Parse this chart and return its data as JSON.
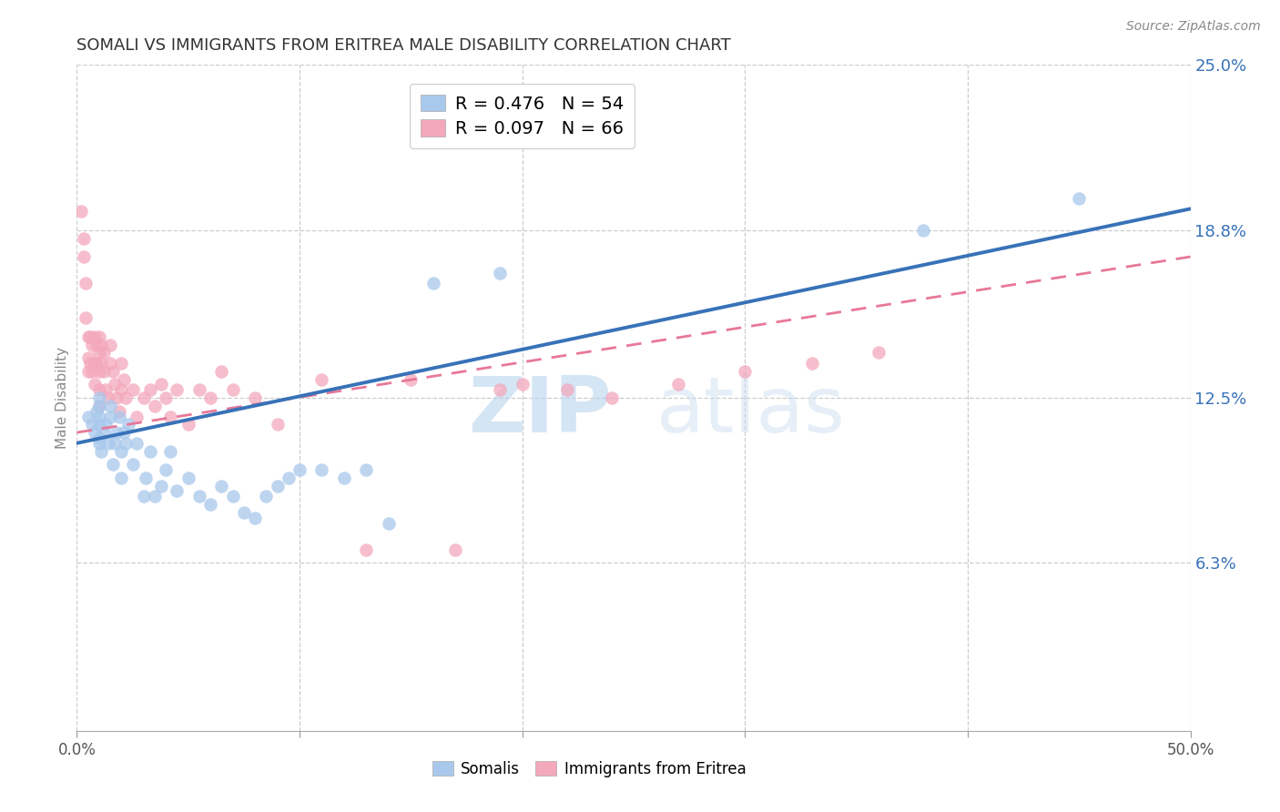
{
  "title": "SOMALI VS IMMIGRANTS FROM ERITREA MALE DISABILITY CORRELATION CHART",
  "source": "Source: ZipAtlas.com",
  "ylabel": "Male Disability",
  "xlim": [
    0.0,
    0.5
  ],
  "ylim": [
    0.0,
    0.25
  ],
  "xticks": [
    0.0,
    0.1,
    0.2,
    0.3,
    0.4,
    0.5
  ],
  "xticklabels": [
    "0.0%",
    "",
    "",
    "",
    "",
    "50.0%"
  ],
  "ytick_labels_right": [
    "6.3%",
    "12.5%",
    "18.8%",
    "25.0%"
  ],
  "ytick_vals_right": [
    0.063,
    0.125,
    0.188,
    0.25
  ],
  "somali_legend": "Somalis",
  "eritrea_legend": "Immigrants from Eritrea",
  "watermark_zip": "ZIP",
  "watermark_atlas": "atlas",
  "somali_color": "#A8C8EC",
  "eritrea_color": "#F4A8BC",
  "somali_line_color": "#3872B8",
  "eritrea_line_color": "#E87898",
  "somali_R": 0.476,
  "somali_N": 54,
  "eritrea_R": 0.097,
  "eritrea_N": 66,
  "somali_line_x0": 0.0,
  "somali_line_y0": 0.108,
  "somali_line_x1": 0.5,
  "somali_line_y1": 0.196,
  "eritrea_line_x0": 0.0,
  "eritrea_line_y0": 0.112,
  "eritrea_line_x1": 0.5,
  "eritrea_line_y1": 0.178,
  "somali_x": [
    0.005,
    0.007,
    0.008,
    0.009,
    0.01,
    0.01,
    0.01,
    0.01,
    0.01,
    0.01,
    0.011,
    0.012,
    0.013,
    0.014,
    0.015,
    0.015,
    0.016,
    0.017,
    0.018,
    0.019,
    0.02,
    0.02,
    0.021,
    0.022,
    0.023,
    0.025,
    0.027,
    0.03,
    0.031,
    0.033,
    0.035,
    0.038,
    0.04,
    0.042,
    0.045,
    0.05,
    0.055,
    0.06,
    0.065,
    0.07,
    0.075,
    0.08,
    0.085,
    0.09,
    0.095,
    0.1,
    0.11,
    0.12,
    0.13,
    0.14,
    0.16,
    0.19,
    0.38,
    0.45
  ],
  "somali_y": [
    0.118,
    0.115,
    0.112,
    0.12,
    0.108,
    0.11,
    0.115,
    0.118,
    0.122,
    0.125,
    0.105,
    0.112,
    0.115,
    0.108,
    0.118,
    0.122,
    0.1,
    0.108,
    0.112,
    0.118,
    0.095,
    0.105,
    0.112,
    0.108,
    0.115,
    0.1,
    0.108,
    0.088,
    0.095,
    0.105,
    0.088,
    0.092,
    0.098,
    0.105,
    0.09,
    0.095,
    0.088,
    0.085,
    0.092,
    0.088,
    0.082,
    0.08,
    0.088,
    0.092,
    0.095,
    0.098,
    0.098,
    0.095,
    0.098,
    0.078,
    0.168,
    0.172,
    0.188,
    0.2
  ],
  "eritrea_x": [
    0.002,
    0.003,
    0.003,
    0.004,
    0.004,
    0.005,
    0.005,
    0.005,
    0.006,
    0.006,
    0.007,
    0.007,
    0.008,
    0.008,
    0.008,
    0.009,
    0.009,
    0.01,
    0.01,
    0.01,
    0.01,
    0.01,
    0.011,
    0.011,
    0.012,
    0.012,
    0.013,
    0.014,
    0.015,
    0.015,
    0.016,
    0.017,
    0.018,
    0.019,
    0.02,
    0.02,
    0.021,
    0.022,
    0.025,
    0.027,
    0.03,
    0.033,
    0.035,
    0.038,
    0.04,
    0.042,
    0.045,
    0.05,
    0.055,
    0.06,
    0.065,
    0.07,
    0.08,
    0.09,
    0.11,
    0.13,
    0.15,
    0.17,
    0.19,
    0.2,
    0.22,
    0.24,
    0.27,
    0.3,
    0.33,
    0.36
  ],
  "eritrea_y": [
    0.195,
    0.185,
    0.178,
    0.168,
    0.155,
    0.148,
    0.14,
    0.135,
    0.148,
    0.138,
    0.145,
    0.135,
    0.148,
    0.138,
    0.13,
    0.145,
    0.138,
    0.148,
    0.142,
    0.135,
    0.128,
    0.122,
    0.145,
    0.138,
    0.142,
    0.135,
    0.128,
    0.125,
    0.145,
    0.138,
    0.135,
    0.13,
    0.125,
    0.12,
    0.138,
    0.128,
    0.132,
    0.125,
    0.128,
    0.118,
    0.125,
    0.128,
    0.122,
    0.13,
    0.125,
    0.118,
    0.128,
    0.115,
    0.128,
    0.125,
    0.135,
    0.128,
    0.125,
    0.115,
    0.132,
    0.068,
    0.132,
    0.068,
    0.128,
    0.13,
    0.128,
    0.125,
    0.13,
    0.135,
    0.138,
    0.142
  ]
}
